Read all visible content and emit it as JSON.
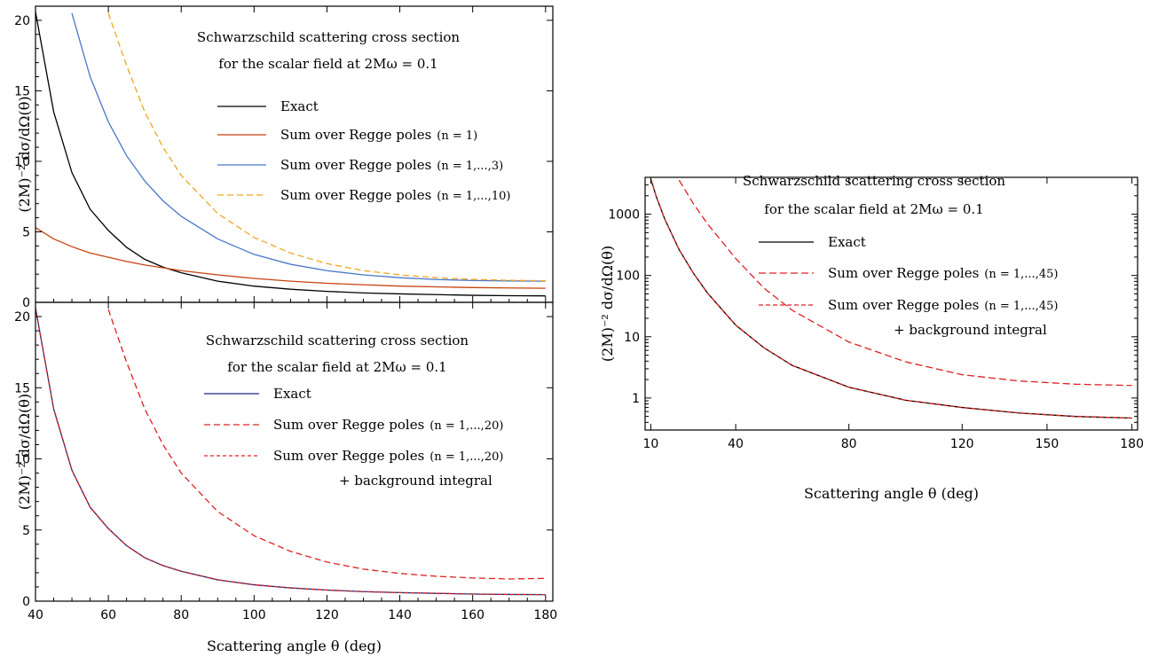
{
  "chart_data": [
    {
      "panel": "top-left",
      "type": "line",
      "annotation": [
        "Schwarzschild scattering cross section",
        "for the scalar field at 2Mω = 0.1"
      ],
      "ylabel": "(2M)⁻² dσ/dΩ(θ)",
      "xlabel": "",
      "xlim": [
        40,
        182
      ],
      "ylim": [
        0,
        21
      ],
      "xticks": [
        40,
        60,
        80,
        100,
        120,
        140,
        160,
        180
      ],
      "yticks": [
        0,
        5,
        10,
        15,
        20
      ],
      "x": [
        40,
        45,
        50,
        55,
        60,
        65,
        70,
        75,
        80,
        90,
        100,
        110,
        120,
        130,
        140,
        150,
        160,
        170,
        180
      ],
      "series": [
        {
          "name": "Exact",
          "color": "#000000",
          "dash": "",
          "legend_main": "Exact",
          "legend_sub": "",
          "values": [
            20.6,
            13.5,
            9.2,
            6.6,
            5.1,
            3.9,
            3.05,
            2.5,
            2.1,
            1.5,
            1.15,
            0.93,
            0.78,
            0.67,
            0.6,
            0.55,
            0.5,
            0.47,
            0.46
          ]
        },
        {
          "name": "Sum over Regge poles (n = 1)",
          "color": "#c8420e",
          "dash": "",
          "legend_main": "Sum over Regge poles",
          "legend_sub": "(n = 1)",
          "values": [
            5.3,
            4.5,
            3.95,
            3.5,
            3.2,
            2.9,
            2.65,
            2.45,
            2.25,
            1.95,
            1.7,
            1.5,
            1.35,
            1.25,
            1.15,
            1.1,
            1.05,
            1.02,
            1.0
          ]
        },
        {
          "name": "Sum over Regge poles (n = 1,...,3)",
          "color": "#4a77c9",
          "dash": "",
          "legend_main": "Sum over Regge poles",
          "legend_sub": "(n = 1,...,3)",
          "values": [
            null,
            null,
            20.5,
            16.0,
            12.8,
            10.4,
            8.6,
            7.2,
            6.1,
            4.5,
            3.4,
            2.7,
            2.25,
            1.95,
            1.75,
            1.62,
            1.55,
            1.52,
            1.5
          ]
        },
        {
          "name": "Sum over Regge poles (n = 1,...,10)",
          "color": "#f0a520",
          "dash": "7,4",
          "legend_main": "Sum over Regge poles",
          "legend_sub": "(n = 1,...,10)",
          "values": [
            null,
            null,
            null,
            null,
            20.5,
            16.8,
            13.5,
            11.0,
            9.0,
            6.3,
            4.6,
            3.5,
            2.75,
            2.25,
            1.95,
            1.75,
            1.63,
            1.56,
            1.53
          ]
        }
      ]
    },
    {
      "panel": "bottom-left",
      "type": "line",
      "annotation": [
        "Schwarzschild scattering cross section",
        "for the scalar field at 2Mω = 0.1"
      ],
      "ylabel": "(2M)⁻² dσ/dΩ(θ)",
      "xlabel": "Scattering angle θ (deg)",
      "xlim": [
        40,
        182
      ],
      "ylim": [
        0,
        21
      ],
      "xticks": [
        40,
        60,
        80,
        100,
        120,
        140,
        160,
        180
      ],
      "yticks": [
        0,
        5,
        10,
        15,
        20
      ],
      "x": [
        40,
        45,
        50,
        55,
        60,
        65,
        70,
        75,
        80,
        90,
        100,
        110,
        120,
        130,
        140,
        150,
        160,
        170,
        180
      ],
      "series": [
        {
          "name": "Exact",
          "color": "#1a2a7a",
          "dash": "",
          "legend_main": "Exact",
          "legend_sub": "",
          "values": [
            20.6,
            13.5,
            9.2,
            6.6,
            5.1,
            3.9,
            3.05,
            2.5,
            2.1,
            1.5,
            1.15,
            0.93,
            0.78,
            0.67,
            0.6,
            0.55,
            0.5,
            0.47,
            0.46
          ]
        },
        {
          "name": "Sum over Regge poles (n = 1,...,20)",
          "color": "#e02020",
          "dash": "7,4",
          "legend_main": "Sum over Regge poles",
          "legend_sub": "(n = 1,...,20)",
          "values": [
            null,
            null,
            null,
            null,
            20.5,
            16.8,
            13.5,
            11.0,
            9.0,
            6.3,
            4.6,
            3.5,
            2.75,
            2.25,
            1.95,
            1.75,
            1.63,
            1.56,
            1.6
          ]
        },
        {
          "name": "Sum over Regge poles (n = 1,...,20) + background integral",
          "color": "#e02020",
          "dash": "4,3",
          "legend_main": "Sum over Regge poles",
          "legend_sub": "(n = 1,...,20)",
          "legend_extra": "+  background integral",
          "values": [
            20.6,
            13.5,
            9.2,
            6.6,
            5.1,
            3.9,
            3.05,
            2.5,
            2.1,
            1.5,
            1.15,
            0.93,
            0.78,
            0.67,
            0.6,
            0.55,
            0.5,
            0.47,
            0.46
          ]
        }
      ]
    },
    {
      "panel": "right",
      "type": "line",
      "yscale": "log",
      "annotation": [
        "Schwarzschild scattering cross section",
        "for the scalar field at 2Mω = 0.1"
      ],
      "ylabel": "(2M)⁻² dσ/dΩ(θ)",
      "xlabel": "Scattering angle θ (deg)",
      "xlim": [
        8,
        182
      ],
      "ylim": [
        0.3,
        4000
      ],
      "xticks": [
        10,
        40,
        80,
        120,
        150,
        180
      ],
      "yticks": [
        1,
        10,
        100,
        1000
      ],
      "x": [
        10,
        12,
        15,
        20,
        25,
        30,
        40,
        50,
        60,
        80,
        100,
        120,
        140,
        160,
        180
      ],
      "series": [
        {
          "name": "Exact",
          "color": "#000000",
          "dash": "",
          "legend_main": "Exact",
          "legend_sub": "",
          "values": [
            3800,
            1900,
            820,
            265,
            110,
            52,
            15.5,
            6.6,
            3.4,
            1.5,
            0.92,
            0.7,
            0.57,
            0.5,
            0.47
          ]
        },
        {
          "name": "Sum over Regge poles (n = 1,...,45)",
          "color": "#e02020",
          "dash": "8,4",
          "legend_main": "Sum over Regge poles",
          "legend_sub": "(n = 1,...,45)",
          "values": [
            null,
            null,
            null,
            3600,
            1500,
            700,
            190,
            62,
            27,
            8.2,
            3.9,
            2.4,
            1.9,
            1.68,
            1.6
          ]
        },
        {
          "name": "Sum over Regge poles (n = 1,...,45) + background integral",
          "color": "#e02020",
          "dash": "5,3",
          "legend_main": "Sum over Regge poles",
          "legend_sub": "(n = 1,...,45)",
          "legend_extra": "+  background integral",
          "values": [
            3800,
            1900,
            820,
            265,
            110,
            52,
            15.5,
            6.6,
            3.4,
            1.5,
            0.92,
            0.7,
            0.57,
            0.5,
            0.47
          ]
        }
      ]
    }
  ]
}
